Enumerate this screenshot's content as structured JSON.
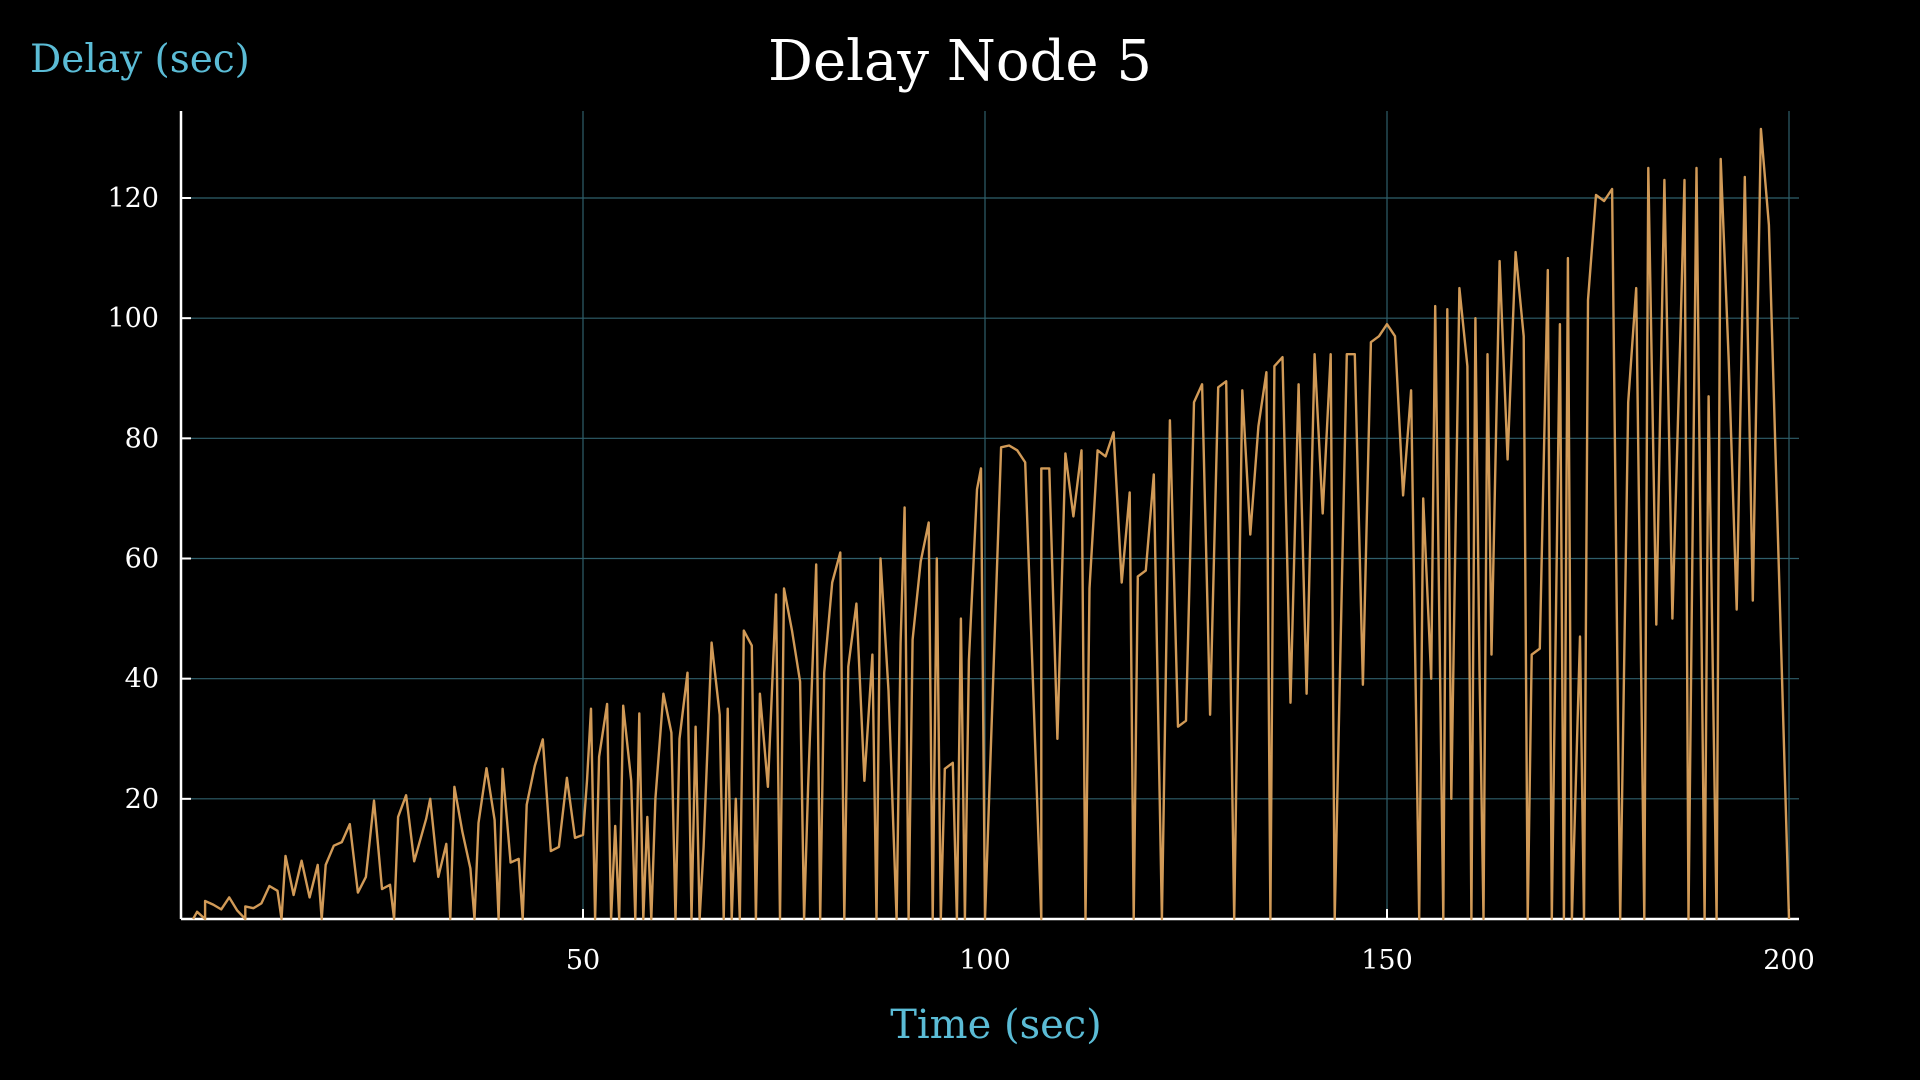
{
  "chart_data": {
    "type": "line",
    "title": "Delay Node 5",
    "xlabel": "Time (sec)",
    "ylabel": "Delay (sec)",
    "xlim": [
      0,
      200
    ],
    "ylim": [
      0,
      135
    ],
    "x_ticks": [
      50,
      100,
      150,
      200
    ],
    "y_ticks": [
      20,
      40,
      60,
      80,
      100,
      120
    ],
    "grid": true,
    "colors": {
      "background": "#000000",
      "line": "#d19a57",
      "grid": "#2f5f6b",
      "axis": "#ffffff",
      "label": "#5bbcd6",
      "text": "#ffffff"
    },
    "series": [
      {
        "points": [
          [
            1.5,
            0.0
          ],
          [
            2.0,
            1.2
          ],
          [
            3.0,
            0.0
          ],
          [
            3.0,
            3.0
          ],
          [
            4.0,
            2.4
          ],
          [
            5.0,
            1.6
          ],
          [
            6.0,
            3.6
          ],
          [
            7.0,
            1.4
          ],
          [
            8.0,
            0.0
          ],
          [
            8.0,
            2.1
          ],
          [
            9.0,
            1.8
          ],
          [
            10.0,
            2.6
          ],
          [
            11.0,
            5.5
          ],
          [
            12.0,
            4.7
          ],
          [
            12.5,
            0.0
          ],
          [
            13.0,
            10.5
          ],
          [
            14.0,
            4.0
          ],
          [
            15.0,
            9.7
          ],
          [
            16.0,
            3.6
          ],
          [
            17.0,
            9.0
          ],
          [
            17.5,
            0.0
          ],
          [
            18.0,
            9.0
          ],
          [
            19.0,
            12.2
          ],
          [
            20.0,
            12.8
          ],
          [
            21.0,
            15.8
          ],
          [
            22.0,
            4.4
          ],
          [
            23.0,
            7.0
          ],
          [
            24.0,
            19.7
          ],
          [
            25.0,
            5.0
          ],
          [
            26.0,
            5.7
          ],
          [
            26.5,
            0.0
          ],
          [
            27.0,
            17.0
          ],
          [
            28.0,
            20.6
          ],
          [
            29.0,
            9.6
          ],
          [
            30.5,
            16.7
          ],
          [
            31.0,
            20.0
          ],
          [
            32.0,
            7.0
          ],
          [
            33.0,
            12.5
          ],
          [
            33.5,
            0.0
          ],
          [
            34.0,
            22.0
          ],
          [
            35.0,
            14.5
          ],
          [
            36.0,
            8.4
          ],
          [
            36.5,
            0.0
          ],
          [
            37.0,
            16.0
          ],
          [
            38.0,
            25.1
          ],
          [
            39.0,
            16.5
          ],
          [
            39.5,
            0.0
          ],
          [
            40.0,
            25.0
          ],
          [
            41.0,
            9.4
          ],
          [
            42.0,
            10.0
          ],
          [
            42.5,
            0.0
          ],
          [
            43.0,
            19.0
          ],
          [
            44.0,
            25.5
          ],
          [
            45.0,
            29.9
          ],
          [
            46.0,
            11.3
          ],
          [
            47.0,
            12.0
          ],
          [
            48.0,
            23.5
          ],
          [
            49.0,
            13.5
          ],
          [
            50.0,
            14.0
          ],
          [
            50.5,
            23.0
          ],
          [
            51.0,
            35.0
          ],
          [
            51.5,
            0.0
          ],
          [
            52.0,
            27.0
          ],
          [
            53.0,
            35.8
          ],
          [
            53.5,
            0.0
          ],
          [
            54.0,
            15.5
          ],
          [
            54.5,
            0.0
          ],
          [
            55.0,
            35.5
          ],
          [
            56.0,
            23.0
          ],
          [
            56.5,
            0.0
          ],
          [
            57.0,
            34.2
          ],
          [
            57.5,
            0.0
          ],
          [
            58.0,
            17.0
          ],
          [
            58.5,
            0.0
          ],
          [
            59.0,
            20.0
          ],
          [
            60.0,
            37.5
          ],
          [
            61.0,
            31.0
          ],
          [
            61.5,
            0.0
          ],
          [
            62.0,
            30.0
          ],
          [
            63.0,
            41.0
          ],
          [
            63.5,
            0.0
          ],
          [
            64.0,
            32.0
          ],
          [
            64.5,
            0.0
          ],
          [
            65.0,
            12.0
          ],
          [
            66.0,
            46.0
          ],
          [
            67.0,
            34.0
          ],
          [
            67.5,
            0.0
          ],
          [
            68.0,
            35.0
          ],
          [
            68.5,
            0.0
          ],
          [
            69.0,
            20.0
          ],
          [
            69.5,
            0.0
          ],
          [
            70.0,
            48.0
          ],
          [
            71.0,
            45.5
          ],
          [
            71.5,
            0.0
          ],
          [
            72.0,
            37.5
          ],
          [
            73.0,
            22.0
          ],
          [
            74.0,
            54.0
          ],
          [
            74.5,
            0.0
          ],
          [
            75.0,
            55.0
          ],
          [
            76.0,
            48.0
          ],
          [
            77.0,
            39.5
          ],
          [
            77.5,
            0.0
          ],
          [
            78.0,
            22.0
          ],
          [
            79.0,
            59.0
          ],
          [
            79.5,
            0.0
          ],
          [
            80.0,
            41.0
          ],
          [
            81.0,
            56.0
          ],
          [
            82.0,
            61.0
          ],
          [
            82.5,
            0.0
          ],
          [
            83.0,
            42.0
          ],
          [
            84.0,
            52.5
          ],
          [
            85.0,
            23.0
          ],
          [
            86.0,
            44.0
          ],
          [
            86.5,
            0.0
          ],
          [
            87.0,
            60.0
          ],
          [
            88.0,
            38.0
          ],
          [
            89.0,
            0.0
          ],
          [
            89.5,
            46.0
          ],
          [
            90.0,
            68.5
          ],
          [
            90.5,
            0.0
          ],
          [
            91.0,
            46.5
          ],
          [
            92.0,
            59.5
          ],
          [
            93.0,
            66.0
          ],
          [
            93.5,
            0.0
          ],
          [
            94.0,
            60.0
          ],
          [
            94.5,
            0.0
          ],
          [
            95.0,
            25.0
          ],
          [
            96.0,
            26.0
          ],
          [
            96.5,
            0.0
          ],
          [
            97.0,
            50.0
          ],
          [
            97.5,
            0.0
          ],
          [
            98.0,
            43.0
          ],
          [
            99.0,
            71.5
          ],
          [
            99.5,
            75.0
          ],
          [
            100.0,
            0.0
          ],
          [
            102.0,
            78.5
          ],
          [
            103.0,
            78.8
          ],
          [
            104.0,
            78.0
          ],
          [
            105.0,
            76.0
          ],
          [
            107.0,
            0.0
          ],
          [
            107.0,
            75.0
          ],
          [
            108.0,
            75.0
          ],
          [
            109.0,
            30.0
          ],
          [
            110.0,
            77.5
          ],
          [
            111.0,
            67.0
          ],
          [
            112.0,
            78.0
          ],
          [
            112.5,
            0.0
          ],
          [
            113.0,
            55.0
          ],
          [
            114.0,
            78.0
          ],
          [
            115.0,
            77.0
          ],
          [
            116.0,
            81.0
          ],
          [
            117.0,
            56.0
          ],
          [
            118.0,
            71.0
          ],
          [
            118.5,
            0.0
          ],
          [
            119.0,
            57.0
          ],
          [
            120.0,
            58.0
          ],
          [
            121.0,
            74.0
          ],
          [
            122.0,
            0.0
          ],
          [
            123.0,
            83.0
          ],
          [
            124.0,
            32.0
          ],
          [
            125.0,
            33.0
          ],
          [
            126.0,
            86.0
          ],
          [
            127.0,
            89.0
          ],
          [
            128.0,
            34.0
          ],
          [
            129.0,
            88.5
          ],
          [
            130.0,
            89.5
          ],
          [
            131.0,
            0.0
          ],
          [
            132.0,
            88.0
          ],
          [
            133.0,
            64.0
          ],
          [
            134.0,
            82.0
          ],
          [
            135.0,
            91.0
          ],
          [
            135.5,
            0.0
          ],
          [
            136.0,
            92.0
          ],
          [
            137.0,
            93.5
          ],
          [
            138.0,
            36.0
          ],
          [
            139.0,
            89.0
          ],
          [
            140.0,
            37.5
          ],
          [
            141.0,
            94.0
          ],
          [
            142.0,
            67.5
          ],
          [
            143.0,
            94.0
          ],
          [
            143.5,
            0.0
          ],
          [
            145.0,
            94.0
          ],
          [
            146.0,
            94.0
          ],
          [
            147.0,
            39.0
          ],
          [
            148.0,
            96.0
          ],
          [
            149.0,
            97.0
          ],
          [
            150.0,
            99.0
          ],
          [
            151.0,
            97.0
          ],
          [
            152.0,
            70.5
          ],
          [
            153.0,
            88.0
          ],
          [
            154.0,
            0.0
          ],
          [
            154.5,
            70.0
          ],
          [
            155.5,
            40.0
          ],
          [
            156.0,
            102.0
          ],
          [
            157.0,
            0.0
          ],
          [
            157.5,
            101.5
          ],
          [
            158.0,
            20.0
          ],
          [
            159.0,
            105.0
          ],
          [
            160.0,
            92.0
          ],
          [
            160.5,
            0.0
          ],
          [
            161.0,
            100.0
          ],
          [
            161.5,
            41.5
          ],
          [
            162.0,
            0.0
          ],
          [
            162.5,
            94.0
          ],
          [
            163.0,
            44.0
          ],
          [
            164.0,
            109.5
          ],
          [
            165.0,
            76.5
          ],
          [
            166.0,
            111.0
          ],
          [
            167.0,
            97.0
          ],
          [
            167.5,
            0.0
          ],
          [
            168.0,
            44.0
          ],
          [
            169.0,
            45.0
          ],
          [
            170.0,
            108.0
          ],
          [
            170.5,
            0.0
          ],
          [
            171.5,
            99.0
          ],
          [
            172.0,
            0.0
          ],
          [
            172.5,
            110.0
          ],
          [
            173.0,
            0.0
          ],
          [
            174.0,
            47.0
          ],
          [
            174.5,
            0.0
          ],
          [
            175.0,
            103.0
          ],
          [
            176.0,
            120.5
          ],
          [
            177.0,
            119.5
          ],
          [
            178.0,
            121.5
          ],
          [
            179.0,
            0.0
          ],
          [
            180.0,
            86.0
          ],
          [
            181.0,
            105.0
          ],
          [
            182.0,
            0.0
          ],
          [
            182.5,
            125.0
          ],
          [
            183.5,
            49.0
          ],
          [
            184.5,
            123.0
          ],
          [
            185.5,
            50.0
          ],
          [
            186.5,
            98.0
          ],
          [
            187.0,
            123.0
          ],
          [
            187.5,
            0.0
          ],
          [
            188.5,
            125.0
          ],
          [
            189.5,
            0.0
          ],
          [
            190.0,
            87.0
          ],
          [
            191.0,
            0.0
          ],
          [
            191.5,
            126.5
          ],
          [
            192.5,
            93.0
          ],
          [
            193.5,
            51.5
          ],
          [
            194.5,
            123.5
          ],
          [
            195.5,
            53.0
          ],
          [
            196.5,
            131.5
          ],
          [
            197.5,
            115.5
          ],
          [
            200.0,
            0.0
          ]
        ]
      }
    ]
  }
}
